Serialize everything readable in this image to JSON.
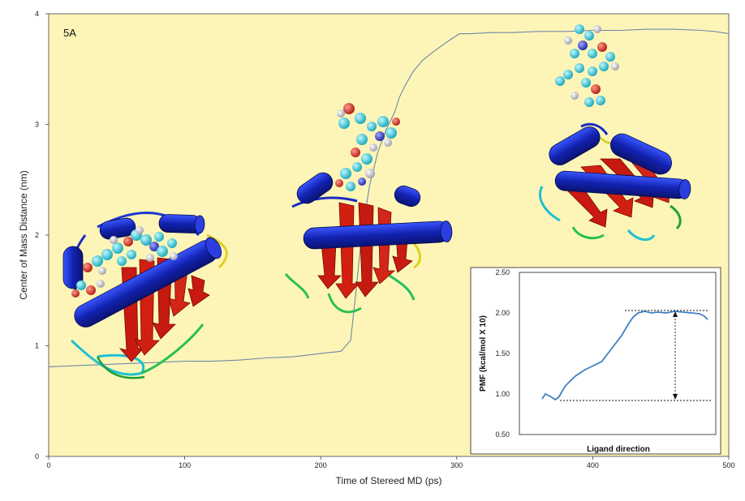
{
  "chart_data": [
    {
      "type": "line",
      "panel_label": "5A",
      "xlabel": "Time of Stereed MD (ps)",
      "ylabel": "Center of Mass Distance (nm)",
      "xlim": [
        0,
        500
      ],
      "ylim": [
        0,
        4
      ],
      "xticks": [
        0,
        100,
        200,
        300,
        400,
        500
      ],
      "yticks": [
        0,
        1,
        2,
        3,
        4
      ],
      "background": "#fdf5b8",
      "series": [
        {
          "color": "#6e87a6",
          "x": [
            0,
            20,
            40,
            60,
            80,
            100,
            120,
            140,
            160,
            180,
            200,
            215,
            222,
            226,
            230,
            236,
            242,
            248,
            254,
            258,
            262,
            268,
            275,
            282,
            290,
            297,
            302,
            310,
            325,
            340,
            360,
            380,
            400,
            420,
            440,
            460,
            480,
            490,
            500
          ],
          "y": [
            0.81,
            0.82,
            0.83,
            0.84,
            0.85,
            0.86,
            0.86,
            0.87,
            0.89,
            0.9,
            0.93,
            0.95,
            1.05,
            1.5,
            2.0,
            2.45,
            2.75,
            2.95,
            3.1,
            3.25,
            3.35,
            3.48,
            3.58,
            3.65,
            3.72,
            3.78,
            3.82,
            3.82,
            3.83,
            3.83,
            3.84,
            3.84,
            3.85,
            3.85,
            3.86,
            3.86,
            3.85,
            3.84,
            3.82
          ]
        }
      ]
    },
    {
      "type": "line",
      "xlabel": "Ligand direction",
      "ylabel": "PMF (kcal/mol X 10)",
      "ylim": [
        0.5,
        2.5
      ],
      "yticks": [
        "0.50",
        "1.00",
        "1.50",
        "2.00",
        "2.50"
      ],
      "xlim": [
        0,
        1
      ],
      "series": [
        {
          "color": "#3f7fc1",
          "x": [
            0.0,
            0.02,
            0.05,
            0.08,
            0.1,
            0.14,
            0.2,
            0.26,
            0.3,
            0.36,
            0.42,
            0.48,
            0.52,
            0.55,
            0.58,
            0.62,
            0.66,
            0.7,
            0.75,
            0.8,
            0.85,
            0.9,
            0.95,
            0.98,
            1.0
          ],
          "y": [
            0.94,
            1.0,
            0.97,
            0.93,
            0.96,
            1.1,
            1.22,
            1.3,
            1.34,
            1.4,
            1.56,
            1.72,
            1.86,
            1.95,
            2.0,
            2.02,
            2.0,
            2.01,
            2.0,
            2.02,
            2.01,
            2.0,
            1.99,
            1.96,
            1.92
          ]
        }
      ],
      "annotation": {
        "from": 0.92,
        "to": 2.03
      }
    }
  ],
  "images": [
    {
      "name": "protein-ligand-bound-image"
    },
    {
      "name": "protein-ligand-partial-unbinding-image"
    },
    {
      "name": "protein-ligand-released-image"
    }
  ]
}
